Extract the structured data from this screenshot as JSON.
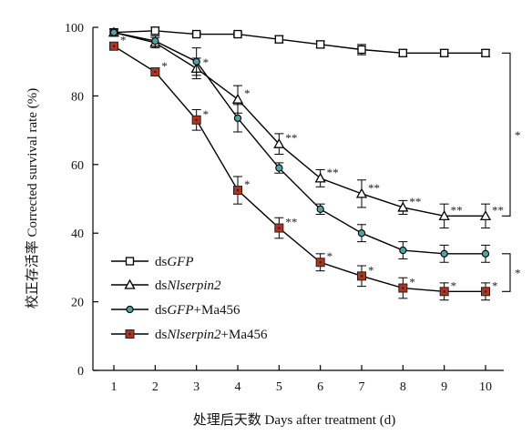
{
  "chart_data": {
    "type": "line",
    "xlabel": "处理后天数 Days after treatment (d)",
    "ylabel": "校正存活率 Corrected survival rate (%)",
    "xlim": [
      1,
      10
    ],
    "ylim": [
      0,
      100
    ],
    "x_ticks": [
      "1",
      "2",
      "3",
      "4",
      "5",
      "6",
      "7",
      "8",
      "9",
      "10"
    ],
    "y_ticks": [
      "0",
      "20",
      "40",
      "60",
      "80",
      "100"
    ],
    "grid": false,
    "legend_position": "bottom-left",
    "x": [
      1,
      2,
      3,
      4,
      5,
      6,
      7,
      8,
      9,
      10
    ],
    "series": [
      {
        "name": "dsGFP",
        "legend_parts": [
          {
            "t": "ds",
            "i": false
          },
          {
            "t": "GFP",
            "i": true
          }
        ],
        "marker": "square-open",
        "color": "#000000",
        "values": [
          98.5,
          99,
          98,
          98,
          96.5,
          95,
          93.5,
          92.5,
          92.5,
          92.5
        ],
        "errors": [
          1,
          1,
          0.5,
          0.5,
          1,
          1,
          1.5,
          1,
          1,
          1
        ],
        "labels": [
          "",
          "",
          "",
          "",
          "",
          "",
          "",
          "",
          "",
          ""
        ]
      },
      {
        "name": "dsNlserpin2",
        "legend_parts": [
          {
            "t": "ds",
            "i": false
          },
          {
            "t": "Nlserpin2",
            "i": true
          }
        ],
        "marker": "triangle-open",
        "color": "#000000",
        "values": [
          98.5,
          95.5,
          88,
          79,
          66,
          56,
          51.5,
          47.5,
          45,
          45
        ],
        "errors": [
          1,
          1.5,
          3,
          4,
          3,
          2.5,
          4,
          2,
          3.5,
          3.5
        ],
        "labels": [
          "",
          "",
          "*",
          "*",
          "**",
          "**",
          "**",
          "**",
          "**",
          "**"
        ]
      },
      {
        "name": "dsGFP+Ma456",
        "legend_parts": [
          {
            "t": "ds",
            "i": false
          },
          {
            "t": "GFP",
            "i": true
          },
          {
            "t": "+Ma456",
            "i": false
          }
        ],
        "marker": "circle-teal",
        "color": "#4fa3a3",
        "values": [
          98.5,
          96,
          90,
          73.5,
          59,
          47,
          40,
          35,
          34,
          34
        ],
        "errors": [
          1,
          1.5,
          4,
          4,
          1.5,
          1.5,
          2.5,
          2.5,
          2.5,
          2.5
        ],
        "labels": [
          "",
          "",
          "",
          "",
          "",
          "",
          "",
          "",
          "",
          ""
        ]
      },
      {
        "name": "dsNlserpin2+Ma456",
        "legend_parts": [
          {
            "t": "ds",
            "i": false
          },
          {
            "t": "Nlserpin2",
            "i": true
          },
          {
            "t": "+Ma456",
            "i": false
          }
        ],
        "marker": "square-red",
        "color": "#b5321c",
        "values": [
          94.5,
          87,
          73,
          52.5,
          41.5,
          31.5,
          27.5,
          24,
          23,
          23
        ],
        "errors": [
          1,
          1,
          3,
          4,
          3,
          2.5,
          3,
          3,
          2.5,
          2.5
        ],
        "labels": [
          "*",
          "*",
          "*",
          "*",
          "**",
          "*",
          "*",
          "*",
          "*",
          "*"
        ]
      }
    ],
    "brackets": [
      {
        "between": [
          "dsGFP",
          "dsNlserpin2"
        ],
        "at_x": 10,
        "label": "*"
      },
      {
        "between": [
          "dsGFP+Ma456",
          "dsNlserpin2+Ma456"
        ],
        "at_x": 10,
        "label": "*"
      }
    ]
  }
}
